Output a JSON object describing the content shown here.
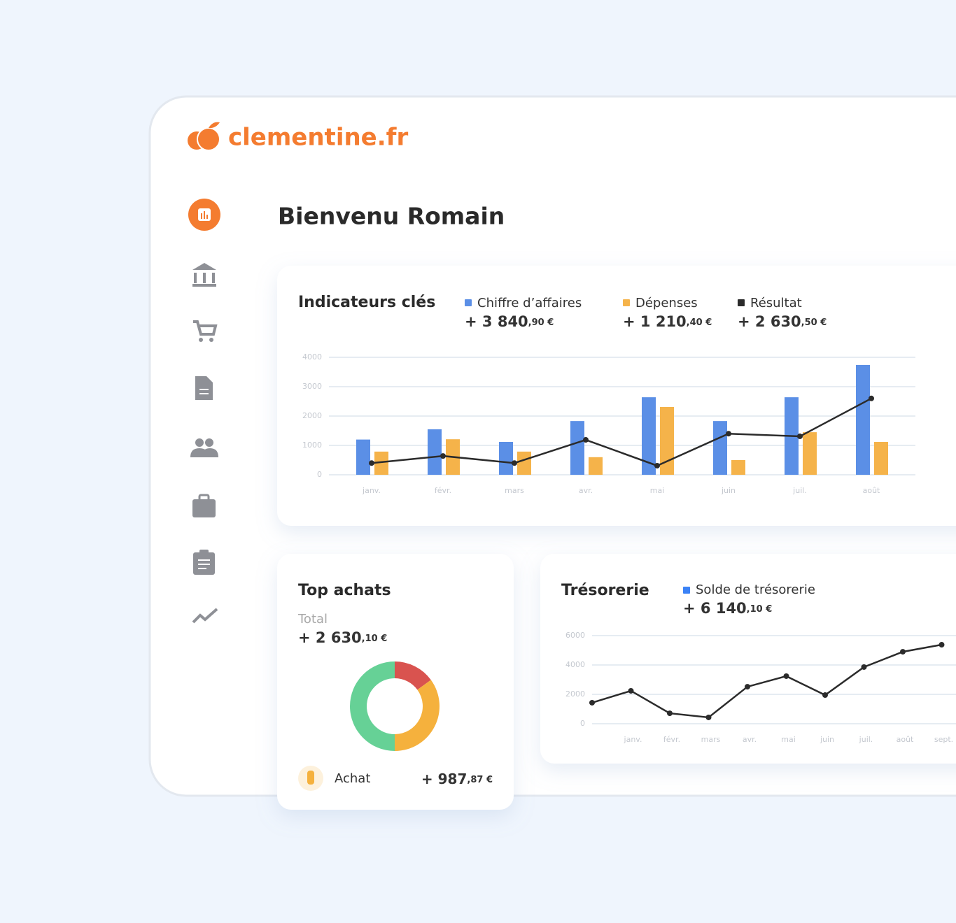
{
  "brand": "clementine.fr",
  "welcome": "Bienvenu Romain",
  "chart_data": [
    {
      "type": "bar",
      "title": "Indicateurs clés",
      "categories": [
        "janv.",
        "févr.",
        "mars",
        "avr.",
        "mai",
        "juin",
        "juil.",
        "août"
      ],
      "series": [
        {
          "name": "Chiffre d’affaires",
          "color": "#5b8fe6",
          "total": "+ 3 840",
          "cents": ",90 €",
          "values": [
            1200,
            1550,
            1120,
            1830,
            2640,
            1830,
            2640,
            3740
          ]
        },
        {
          "name": "Dépenses",
          "color": "#f5b34a",
          "total": "+ 1 210",
          "cents": ",40 €",
          "values": [
            790,
            1210,
            790,
            600,
            2310,
            500,
            1450,
            1120
          ]
        },
        {
          "name": "Résultat",
          "color": "#2b2b2b",
          "type": "line",
          "total": "+ 2 630",
          "cents": ",50 €",
          "values": [
            400,
            640,
            400,
            1190,
            310,
            1400,
            1310,
            2600
          ]
        }
      ],
      "ylim": [
        0,
        4000
      ],
      "yticks": [
        0,
        1000,
        2000,
        3000,
        4000
      ],
      "grid": true
    },
    {
      "type": "pie",
      "title": "Top achats",
      "total_label": "Total",
      "total": "+ 2 630",
      "cents": ",10 €",
      "donut": true,
      "values": [
        15,
        35,
        50
      ],
      "colors": [
        "#d9534f",
        "#f5b13d",
        "#66d196"
      ],
      "item": {
        "label": "Achat",
        "amount": "+ 987",
        "cents": ",87 €"
      }
    },
    {
      "type": "line",
      "title": "Trésorerie",
      "categories": [
        null,
        "janv.",
        "févr.",
        "mars",
        "avr.",
        "mai",
        "juin",
        "juil.",
        "août",
        "sept."
      ],
      "series": [
        {
          "name": "Solde de trésorerie",
          "color": "#2b2b2b",
          "legend_color": "#3b82f6",
          "total": "+ 6 140",
          "cents": ",10 €",
          "values": [
            1430,
            2240,
            710,
            430,
            2520,
            3240,
            1950,
            3860,
            4900,
            5380
          ]
        }
      ],
      "ylim": [
        0,
        6000
      ],
      "yticks": [
        0,
        2000,
        4000,
        6000
      ],
      "grid": true
    }
  ]
}
